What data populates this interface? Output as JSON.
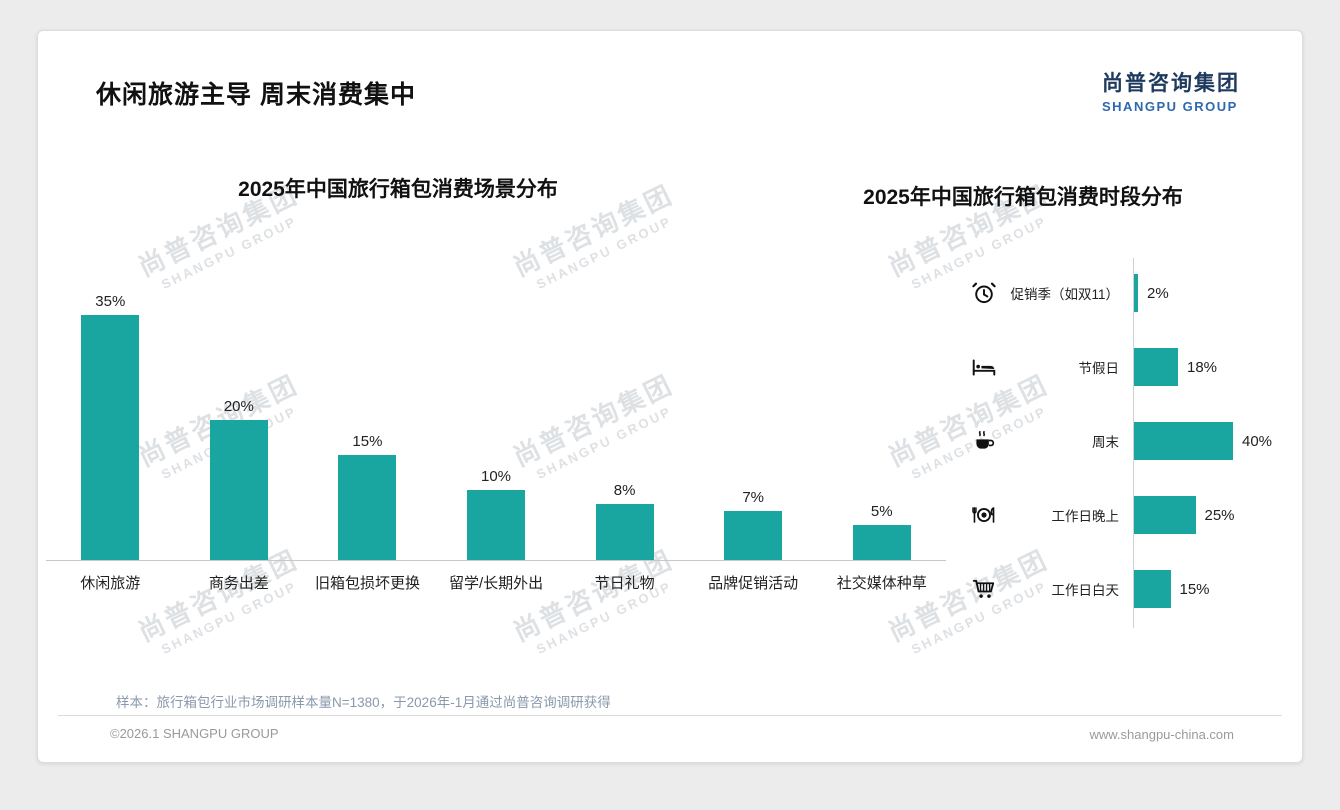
{
  "page": {
    "title": "休闲旅游主导 周末消费集中",
    "logo": {
      "cn": "尚普咨询集团",
      "en": "SHANGPU GROUP"
    },
    "watermark": {
      "cn": "尚普咨询集团",
      "en": "SHANGPU GROUP"
    },
    "footer": {
      "note": "样本：旅行箱包行业市场调研样本量N=1380，于2026年-1月通过尚普咨询调研获得",
      "copyright": "©2026.1 SHANGPU GROUP",
      "website": "www.shangpu-china.com"
    }
  },
  "colors": {
    "bar": "#1aa6a0",
    "logo_cn": "#1e3a5f",
    "logo_en": "#2e68ad"
  },
  "chart_data": [
    {
      "type": "bar",
      "orientation": "vertical",
      "title": "2025年中国旅行箱包消费场景分布",
      "categories": [
        "休闲旅游",
        "商务出差",
        "旧箱包损坏更换",
        "留学/长期外出",
        "节日礼物",
        "品牌促销活动",
        "社交媒体种草"
      ],
      "values": [
        35,
        20,
        15,
        10,
        8,
        7,
        5
      ],
      "unit": "%",
      "ylim": [
        0,
        40
      ],
      "grid": false,
      "legend": "none"
    },
    {
      "type": "bar",
      "orientation": "horizontal",
      "title": "2025年中国旅行箱包消费时段分布",
      "categories": [
        "促销季（如双11）",
        "节假日",
        "周末",
        "工作日晚上",
        "工作日白天"
      ],
      "values": [
        2,
        18,
        40,
        25,
        15
      ],
      "icons": [
        "alarm-clock",
        "bed",
        "coffee",
        "dining",
        "shopping-cart"
      ],
      "unit": "%",
      "xlim": [
        0,
        45
      ],
      "grid": false,
      "legend": "none"
    }
  ]
}
